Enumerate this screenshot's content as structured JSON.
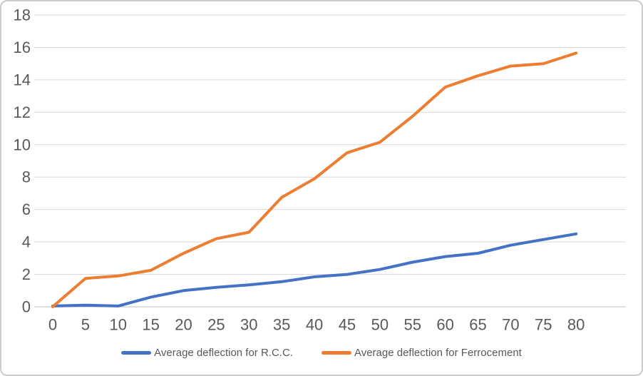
{
  "frame": {
    "background_color": "#FFFFFF",
    "border_color": "#CCCCCC"
  },
  "chart_data": {
    "type": "line",
    "title": "",
    "xlabel": "",
    "ylabel": "",
    "categories": [
      "0",
      "5",
      "10",
      "15",
      "20",
      "25",
      "30",
      "35",
      "40",
      "45",
      "50",
      "55",
      "60",
      "65",
      "70",
      "75",
      "80"
    ],
    "series": [
      {
        "name": "Average deflection for R.C.C.",
        "color": "#4472C4",
        "values": [
          0.05,
          0.1,
          0.05,
          0.6,
          1.0,
          1.2,
          1.35,
          1.55,
          1.85,
          2.0,
          2.3,
          2.75,
          3.1,
          3.3,
          3.8,
          4.15,
          4.5
        ]
      },
      {
        "name": "Average deflection for Ferrocement",
        "color": "#ED7D31",
        "values": [
          0,
          1.75,
          1.9,
          2.25,
          3.3,
          4.2,
          4.6,
          6.75,
          7.9,
          9.5,
          10.15,
          11.75,
          13.55,
          14.25,
          14.85,
          15.0,
          15.65
        ]
      }
    ],
    "ylim": [
      0,
      18
    ],
    "ytick_step": 2,
    "yticks": [
      "0",
      "2",
      "4",
      "6",
      "8",
      "10",
      "12",
      "14",
      "16",
      "18"
    ],
    "grid": true,
    "gridline_color": "#D9D9D9",
    "axis_line_color": "#BFBFBF",
    "tick_label_color": "#595959",
    "legend_position": "bottom"
  }
}
